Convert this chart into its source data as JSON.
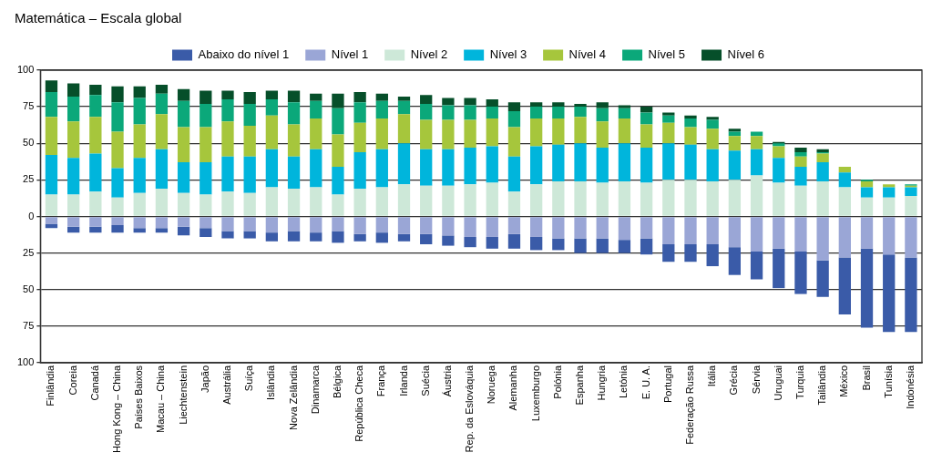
{
  "chart_data": {
    "type": "bar",
    "title": "Matemática – Escala global",
    "categories": [
      "Finlândia",
      "Coreia",
      "Canadá",
      "Hong Kong – China",
      "Países Baixos",
      "Macau – China",
      "Liechtenstein",
      "Japão",
      "Austrália",
      "Suíça",
      "Islândia",
      "Nova Zelândia",
      "Dinamarca",
      "Bélgica",
      "República Checa",
      "França",
      "Irlanda",
      "Suécia",
      "Áustria",
      "Rep. da Eslováquia",
      "Noruega",
      "Alemanha",
      "Luxemburgo",
      "Polónia",
      "Espanha",
      "Hungria",
      "Letónia",
      "E. U. A.",
      "Portugal",
      "Federação Russa",
      "Itália",
      "Grécia",
      "Sérvia",
      "Uruguai",
      "Turquia",
      "Tailândia",
      "México",
      "Brasil",
      "Tunísia",
      "Indonésia"
    ],
    "stacked": true,
    "series": [
      {
        "name": "Nível 1",
        "color": "#9aa6d6",
        "values": [
          -5,
          -7,
          -7,
          -6,
          -8,
          -8,
          -7,
          -8,
          -10,
          -10,
          -11,
          -10,
          -11,
          -10,
          -12,
          -11,
          -12,
          -12,
          -13,
          -14,
          -14,
          -12,
          -14,
          -15,
          -15,
          -15,
          -16,
          -15,
          -19,
          -19,
          -19,
          -21,
          -24,
          -22,
          -24,
          -30,
          -28,
          -22,
          -26,
          -28
        ]
      },
      {
        "name": "Abaixo do nível 1",
        "color": "#3a5ba8",
        "values": [
          -3,
          -4,
          -4,
          -5,
          -3,
          -3,
          -6,
          -6,
          -5,
          -5,
          -6,
          -7,
          -6,
          -8,
          -5,
          -7,
          -5,
          -7,
          -7,
          -7,
          -8,
          -10,
          -9,
          -8,
          -10,
          -10,
          -9,
          -11,
          -12,
          -12,
          -15,
          -19,
          -19,
          -27,
          -29,
          -25,
          -39,
          -54,
          -53,
          -51
        ]
      },
      {
        "name": "Nível 2",
        "color": "#cde8d8",
        "values": [
          15,
          15,
          17,
          13,
          16,
          19,
          16,
          15,
          17,
          16,
          20,
          19,
          20,
          15,
          19,
          20,
          22,
          21,
          21,
          22,
          23,
          17,
          22,
          24,
          24,
          23,
          24,
          23,
          25,
          25,
          24,
          25,
          28,
          23,
          21,
          24,
          20,
          13,
          13,
          14
        ]
      },
      {
        "name": "Nível 3",
        "color": "#00b5dc",
        "values": [
          27,
          25,
          26,
          20,
          24,
          27,
          21,
          22,
          24,
          25,
          26,
          22,
          26,
          19,
          25,
          26,
          28,
          25,
          25,
          25,
          25,
          24,
          26,
          25,
          26,
          24,
          26,
          24,
          25,
          24,
          22,
          20,
          18,
          17,
          13,
          13,
          10,
          7,
          7,
          6
        ]
      },
      {
        "name": "Nível 4",
        "color": "#a6c63c",
        "values": [
          26,
          25,
          25,
          25,
          23,
          24,
          24,
          24,
          24,
          21,
          23,
          22,
          21,
          22,
          20,
          21,
          20,
          20,
          20,
          19,
          19,
          20,
          19,
          18,
          18,
          18,
          17,
          16,
          14,
          12,
          14,
          10,
          9,
          8,
          7,
          6,
          4,
          4,
          2,
          1
        ]
      },
      {
        "name": "Nível 5",
        "color": "#0ba87a",
        "values": [
          17,
          17,
          15,
          20,
          18,
          14,
          18,
          16,
          15,
          15,
          11,
          15,
          12,
          18,
          14,
          12,
          9,
          11,
          10,
          10,
          8,
          11,
          8,
          8,
          7,
          9,
          7,
          8,
          5,
          6,
          6,
          3,
          3,
          2,
          3,
          1,
          0,
          1,
          0,
          1
        ]
      },
      {
        "name": "Nível 6",
        "color": "#064f2a",
        "values": [
          8,
          9,
          7,
          11,
          8,
          6,
          8,
          9,
          6,
          8,
          6,
          8,
          5,
          10,
          7,
          5,
          3,
          6,
          5,
          5,
          5,
          6,
          3,
          3,
          2,
          4,
          2,
          4,
          2,
          2,
          2,
          2,
          0,
          1,
          3,
          2,
          0,
          0,
          0,
          0
        ]
      }
    ],
    "ylim": [
      -100,
      100
    ],
    "yticks": [
      {
        "value": 100,
        "label": "100"
      },
      {
        "value": 75,
        "label": "75"
      },
      {
        "value": 50,
        "label": "50"
      },
      {
        "value": 25,
        "label": "25"
      },
      0,
      {
        "value": -25,
        "label": "25"
      },
      {
        "value": -50,
        "label": "50"
      },
      {
        "value": -75,
        "label": "75"
      },
      {
        "value": -100,
        "label": "100"
      }
    ],
    "grid": "y",
    "legend": "top"
  }
}
